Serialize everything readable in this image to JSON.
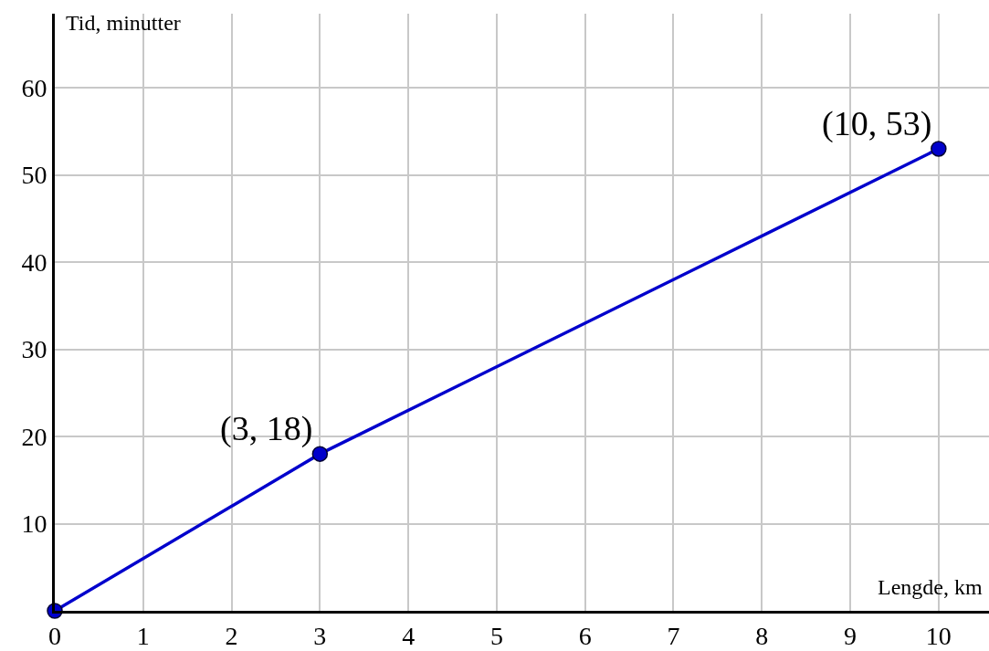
{
  "chart_data": {
    "type": "line",
    "xlabel": "Lengde, km",
    "ylabel": "Tid, minutter",
    "x": [
      0,
      3,
      10
    ],
    "series": [
      {
        "color": "#0000cc",
        "values": [
          0,
          18,
          53
        ]
      }
    ],
    "annotations": [
      {
        "text": "(3, 18)",
        "x": 3,
        "y": 18
      },
      {
        "text": "(10, 53)",
        "x": 10,
        "y": 53
      }
    ],
    "xlim": [
      0,
      10.57
    ],
    "ylim": [
      0,
      68.5
    ],
    "xticks": [
      0,
      1,
      2,
      3,
      4,
      5,
      6,
      7,
      8,
      9,
      10
    ],
    "yticks": [
      10,
      20,
      30,
      40,
      50,
      60
    ],
    "grid": true,
    "marker": "circle",
    "line_style": "solid"
  }
}
